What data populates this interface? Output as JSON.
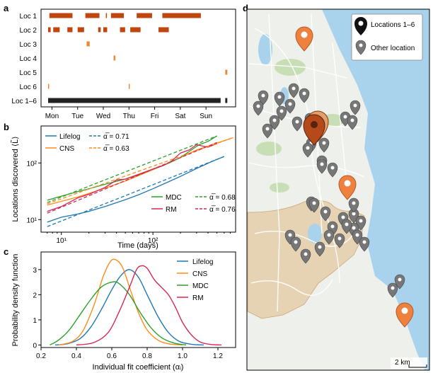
{
  "colors": {
    "lifelog": "#1f77b4",
    "cns": "#ff8c1a",
    "mdc": "#2ca02c",
    "rm": "#d62752",
    "loc_dark": "#c0460f",
    "loc_orange": "#ee8833",
    "all_locs": "#222222",
    "water": "#a9d3ec",
    "land": "#eef0ec",
    "park": "#c8dfb5",
    "city": "#e6d3b3",
    "pin_grey": "#777777",
    "pin_dark": "#3a1f12",
    "pin_orange": "#ee8040"
  },
  "panel_labels": [
    "a",
    "b",
    "c",
    "d"
  ],
  "chart_data": [
    {
      "type": "timeline",
      "panel": "a",
      "rows": [
        "Loc 1",
        "Loc 2",
        "Loc 3",
        "Loc 4",
        "Loc 5",
        "Loc 6",
        "Loc 1–6"
      ],
      "days": [
        "Mon",
        "Tue",
        "Wed",
        "Thu",
        "Fri",
        "Sat",
        "Sun"
      ],
      "x_range_days": [
        0,
        7
      ],
      "visits": [
        {
          "row": "Loc 1",
          "intervals": [
            [
              0.05,
              0.95
            ],
            [
              1.45,
              2.0
            ],
            [
              2.25,
              2.27
            ],
            [
              2.45,
              2.95
            ],
            [
              3.45,
              4.05
            ],
            [
              4.45,
              5.95
            ]
          ]
        },
        {
          "row": "Loc 2",
          "intervals": [
            [
              0.0,
              0.1
            ],
            [
              0.2,
              0.45
            ],
            [
              0.75,
              0.95
            ],
            [
              1.15,
              1.4
            ],
            [
              1.95,
              2.05
            ],
            [
              2.15,
              2.3
            ],
            [
              2.8,
              3.0
            ],
            [
              3.2,
              3.6
            ],
            [
              4.3,
              4.7
            ]
          ]
        },
        {
          "row": "Loc 3",
          "intervals": [
            [
              1.5,
              1.62
            ]
          ]
        },
        {
          "row": "Loc 4",
          "intervals": [
            [
              2.55,
              2.62
            ]
          ]
        },
        {
          "row": "Loc 5",
          "intervals": [
            [
              6.9,
              6.98
            ]
          ]
        },
        {
          "row": "Loc 6",
          "intervals": [
            [
              0.0,
              0.02
            ],
            [
              3.14,
              3.16
            ]
          ]
        },
        {
          "row": "Loc 1–6",
          "intervals": [
            [
              0.0,
              6.72
            ],
            [
              6.9,
              6.98
            ]
          ]
        }
      ]
    },
    {
      "type": "line",
      "panel": "b",
      "xlabel": "Time (days)",
      "ylabel": "Locations discovered ⟨L̃⟩",
      "xscale": "log",
      "yscale": "log",
      "xlim": [
        6,
        800
      ],
      "ylim": [
        6,
        450
      ],
      "xticks": [
        10,
        100
      ],
      "xtick_labels": [
        "10¹",
        "10²"
      ],
      "yticks": [
        10,
        100
      ],
      "ytick_labels": [
        "10¹",
        "10²"
      ],
      "series": [
        {
          "name": "Lifelog",
          "style": "solid",
          "x": [
            7,
            10,
            15,
            20,
            30,
            50,
            70,
            100,
            150,
            200,
            300,
            450,
            600
          ],
          "y": [
            9,
            11,
            12.5,
            14,
            17,
            22.5,
            27.5,
            35,
            47,
            58,
            80,
            108,
            130
          ]
        },
        {
          "name": "CNS",
          "style": "solid",
          "x": [
            7,
            10,
            15,
            20,
            30,
            50,
            70,
            100,
            150,
            200,
            300,
            500,
            750
          ],
          "y": [
            18,
            21,
            25,
            29,
            36,
            48,
            60,
            76,
            100,
            125,
            170,
            225,
            280
          ]
        },
        {
          "name": "MDC",
          "style": "solid",
          "x": [
            7,
            10,
            15,
            20,
            30,
            50,
            70,
            100,
            150,
            200,
            250,
            320,
            400,
            500
          ],
          "y": [
            22,
            26,
            31,
            35,
            42,
            52,
            62,
            78,
            100,
            125,
            160,
            210,
            240,
            300
          ]
        },
        {
          "name": "RM",
          "style": "solid",
          "x": [
            7,
            10,
            15,
            20,
            30,
            40,
            50,
            70,
            100,
            130,
            160,
            200,
            250,
            300,
            400,
            500
          ],
          "y": [
            14,
            17,
            24,
            28,
            37,
            50,
            52,
            63,
            78,
            90,
            108,
            150,
            170,
            210,
            190,
            220
          ]
        },
        {
          "name": "Lifelog fit",
          "alpha": 0.71,
          "style": "dashed",
          "color_of": "Lifelog",
          "x": [
            7,
            600
          ],
          "y": [
            7.5,
            130
          ]
        },
        {
          "name": "CNS fit",
          "alpha": 0.63,
          "style": "dashed",
          "color_of": "CNS",
          "x": [
            7,
            750
          ],
          "y": [
            19,
            280
          ]
        },
        {
          "name": "MDC fit",
          "alpha": 0.68,
          "style": "dashed",
          "color_of": "MDC",
          "x": [
            7,
            500
          ],
          "y": [
            20,
            300
          ]
        },
        {
          "name": "RM fit",
          "alpha": 0.76,
          "style": "dashed",
          "color_of": "RM",
          "x": [
            7,
            500
          ],
          "y": [
            13,
            230
          ]
        }
      ],
      "legend_top": [
        {
          "label": "Lifelog",
          "style": "solid",
          "color_of": "Lifelog"
        },
        {
          "label": "α̅ = 0.71",
          "style": "dashed",
          "color_of": "Lifelog"
        },
        {
          "label": "CNS",
          "style": "solid",
          "color_of": "CNS"
        },
        {
          "label": "α̅ = 0.63",
          "style": "dashed",
          "color_of": "CNS"
        }
      ],
      "legend_bottom": [
        {
          "label": "MDC",
          "style": "solid",
          "color_of": "MDC"
        },
        {
          "label": "α̅ = 0.68",
          "style": "dashed",
          "color_of": "MDC"
        },
        {
          "label": "RM",
          "style": "solid",
          "color_of": "RM"
        },
        {
          "label": "α̅ = 0.76",
          "style": "dashed",
          "color_of": "RM"
        }
      ]
    },
    {
      "type": "line",
      "panel": "c",
      "xlabel": "Individual fit coefficient (αᵢ)",
      "ylabel": "Probability density function",
      "xlim": [
        0.2,
        1.3
      ],
      "ylim": [
        -0.1,
        3.7
      ],
      "xticks": [
        0.2,
        0.4,
        0.6,
        0.8,
        1.0,
        1.2
      ],
      "xtick_labels": [
        "0.2",
        "0.4",
        "0.6",
        "0.8",
        "1.0",
        "1.2"
      ],
      "yticks": [
        0,
        1,
        2,
        3
      ],
      "ytick_labels": [
        "0",
        "1",
        "2",
        "3"
      ],
      "series": [
        {
          "name": "Lifelog",
          "x": [
            0.28,
            0.35,
            0.42,
            0.48,
            0.54,
            0.6,
            0.65,
            0.7,
            0.75,
            0.8,
            0.86,
            0.92,
            0.98,
            1.05,
            1.12
          ],
          "y": [
            0.0,
            0.05,
            0.25,
            0.7,
            1.4,
            2.2,
            2.75,
            3.0,
            2.7,
            2.0,
            1.15,
            0.5,
            0.15,
            0.03,
            0.0
          ]
        },
        {
          "name": "CNS",
          "x": [
            0.3,
            0.38,
            0.44,
            0.5,
            0.55,
            0.59,
            0.62,
            0.66,
            0.7,
            0.75,
            0.8,
            0.86,
            0.92,
            1.0
          ],
          "y": [
            0.0,
            0.15,
            0.6,
            1.6,
            2.7,
            3.3,
            3.4,
            3.1,
            2.3,
            1.3,
            0.6,
            0.2,
            0.05,
            0.0
          ]
        },
        {
          "name": "MDC",
          "x": [
            0.25,
            0.3,
            0.36,
            0.42,
            0.48,
            0.54,
            0.6,
            0.64,
            0.7,
            0.76,
            0.82,
            0.88,
            0.95,
            1.02
          ],
          "y": [
            0.0,
            0.2,
            0.6,
            1.2,
            1.8,
            2.3,
            2.5,
            2.45,
            2.0,
            1.3,
            0.7,
            0.3,
            0.08,
            0.0
          ]
        },
        {
          "name": "RM",
          "x": [
            0.4,
            0.5,
            0.58,
            0.64,
            0.7,
            0.74,
            0.77,
            0.8,
            0.84,
            0.88,
            0.92,
            0.96,
            1.0,
            1.05,
            1.1,
            1.16,
            1.22
          ],
          "y": [
            0.0,
            0.1,
            0.5,
            1.3,
            2.3,
            3.0,
            3.15,
            3.05,
            2.6,
            2.3,
            2.0,
            1.5,
            0.9,
            0.4,
            0.12,
            0.02,
            0.0
          ]
        }
      ],
      "legend": [
        "Lifelog",
        "CNS",
        "MDC",
        "RM"
      ]
    }
  ],
  "map": {
    "legend": {
      "locations_label": "Locations 1–6",
      "other_label": "Other location"
    },
    "scale_label": "2 km"
  }
}
